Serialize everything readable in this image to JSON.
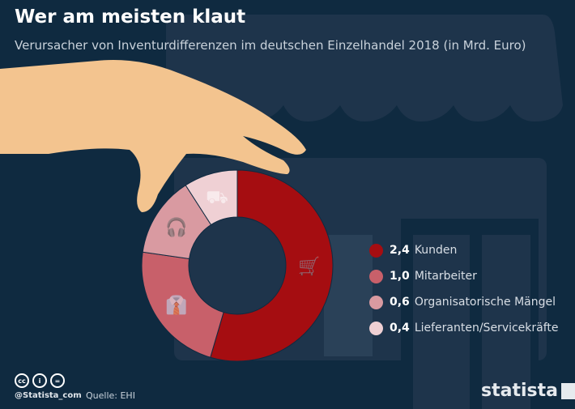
{
  "header": {
    "title": "Wer am meisten klaut",
    "subtitle": "Verursacher von Inventurdifferenzen im deutschen Einzelhandel 2018 (in Mrd. Euro)"
  },
  "colors": {
    "background": "#0f2a40",
    "store": "#1e344b",
    "hand": "#f3c48f"
  },
  "chart_data": {
    "type": "pie",
    "donut": true,
    "title": "Wer am meisten klaut",
    "subtitle": "Verursacher von Inventurdifferenzen im deutschen Einzelhandel 2018 (in Mrd. Euro)",
    "legend_position": "right",
    "slices": [
      {
        "label": "Kunden",
        "value": 2.4,
        "value_label": "2,4",
        "color": "#a50d11",
        "icon": "shopping-cart-icon"
      },
      {
        "label": "Mitarbeiter",
        "value": 1.0,
        "value_label": "1,0",
        "color": "#c8606a",
        "icon": "necktie-icon"
      },
      {
        "label": "Organisatorische Mängel",
        "value": 0.6,
        "value_label": "0,6",
        "color": "#d99aa1",
        "icon": "headset-icon"
      },
      {
        "label": "Lieferanten/Servicekräfte",
        "value": 0.4,
        "value_label": "0,4",
        "color": "#efd0d4",
        "icon": "hand-truck-icon"
      }
    ]
  },
  "footer": {
    "handle": "@Statista_com",
    "source": "Quelle: EHI",
    "logo": "statista",
    "license_icons": [
      "cc-icon",
      "by-icon",
      "nd-icon"
    ]
  }
}
